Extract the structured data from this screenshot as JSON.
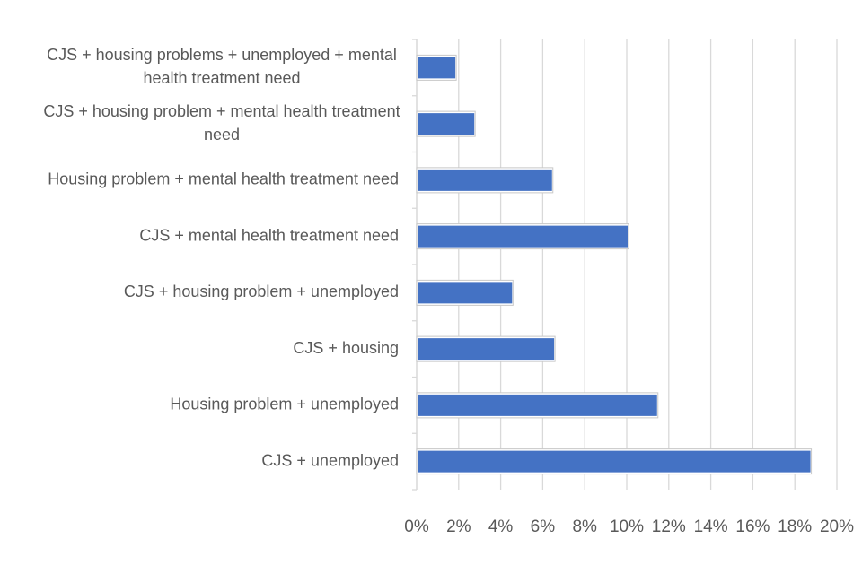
{
  "chart_data": {
    "type": "bar",
    "orientation": "horizontal",
    "categories": [
      "CJS + housing problems + unemployed + mental health treatment need",
      "CJS + housing problem + mental health treatment need",
      "Housing problem + mental health treatment need",
      "CJS + mental health treatment need",
      "CJS + housing problem + unemployed",
      "CJS + housing",
      "Housing problem + unemployed",
      "CJS + unemployed"
    ],
    "category_lines": [
      [
        "CJS + housing problems + unemployed + mental",
        "health treatment need"
      ],
      [
        "CJS + housing problem + mental health treatment",
        "need"
      ],
      [
        "Housing problem + mental health treatment need"
      ],
      [
        "CJS + mental health treatment need"
      ],
      [
        "CJS + housing problem + unemployed"
      ],
      [
        "CJS + housing"
      ],
      [
        "Housing problem + unemployed"
      ],
      [
        "CJS + unemployed"
      ]
    ],
    "values": [
      1.8,
      2.7,
      6.4,
      10.0,
      4.5,
      6.5,
      11.4,
      18.7
    ],
    "xlim": [
      0,
      20
    ],
    "xticks": [
      "0%",
      "2%",
      "4%",
      "6%",
      "8%",
      "10%",
      "12%",
      "14%",
      "16%",
      "18%",
      "20%"
    ],
    "bar_color": "#4472C4",
    "grid_color": "#D9D9D9",
    "grid": true,
    "legend": "none",
    "title": "",
    "xlabel": "",
    "ylabel": ""
  }
}
